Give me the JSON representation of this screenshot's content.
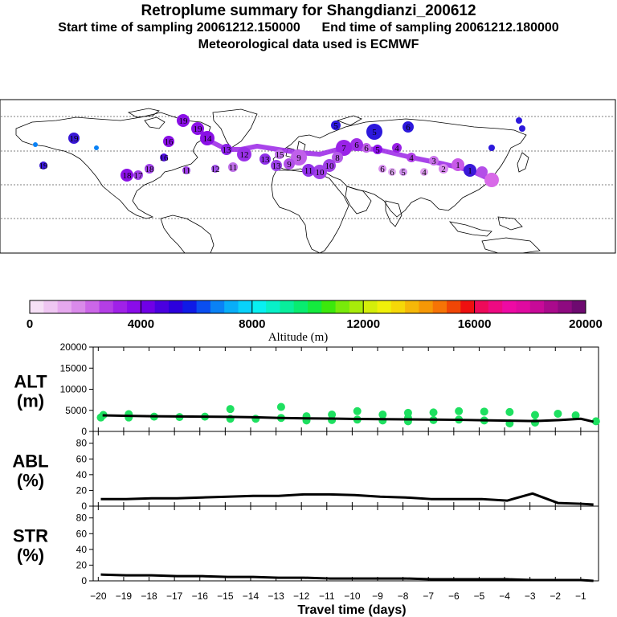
{
  "header": {
    "title": "Retroplume summary for Shangdianzi_200612",
    "sampling_line": "Start time of sampling 20061212.150000      End time of sampling 20061212.180000",
    "met_line": "Meteorological data used is ECMWF"
  },
  "colorbar": {
    "label": "Altitude (m)",
    "ticks": [
      "0",
      "4000",
      "8000",
      "12000",
      "16000",
      "20000"
    ],
    "range": [
      0,
      20000
    ],
    "colors": [
      "#f6e0f6",
      "#efc6f2",
      "#e6a8ee",
      "#da8aea",
      "#cc66e8",
      "#b43ee6",
      "#a021e8",
      "#8a0cea",
      "#7000e6",
      "#4a00e0",
      "#2c00dc",
      "#0f1ae6",
      "#0a4ef0",
      "#0a82f5",
      "#08aef8",
      "#08d2fa",
      "#08f0f2",
      "#08f0c8",
      "#08ee9c",
      "#08ec70",
      "#14ea3e",
      "#3ce80c",
      "#78ea0a",
      "#a8ec0a",
      "#d4ee0a",
      "#f0f00a",
      "#f6d808",
      "#f6b808",
      "#f69806",
      "#f67406",
      "#f04606",
      "#ee1010",
      "#ee0a5a",
      "#ee0a82",
      "#ee0aa4",
      "#e00aa0",
      "#c80a98",
      "#aa0a8c",
      "#8e0a80",
      "#6e0a70"
    ]
  },
  "map": {
    "labels": [
      "1",
      "2",
      "3",
      "4",
      "5",
      "6",
      "7",
      "8",
      "9",
      "10",
      "11",
      "12",
      "13",
      "14",
      "15",
      "16",
      "17",
      "18",
      "19",
      "20"
    ]
  },
  "chart_data": [
    {
      "type": "line",
      "name": "ALT",
      "ylabel": "ALT\n(m)",
      "yticks": [
        0,
        5000,
        10000,
        15000,
        20000
      ],
      "ylim": [
        0,
        20000
      ],
      "xlim": [
        -20.2,
        -0.3
      ],
      "x": [
        -19.83,
        -18.83,
        -17.83,
        -16.83,
        -15.83,
        -14.83,
        -13.83,
        -12.83,
        -11.83,
        -10.83,
        -9.83,
        -8.83,
        -7.83,
        -6.83,
        -5.83,
        -4.83,
        -3.83,
        -2.83,
        -1.83,
        -1.0,
        -0.5
      ],
      "line": [
        3800,
        3700,
        3600,
        3550,
        3500,
        3450,
        3350,
        3200,
        3100,
        3050,
        2950,
        2900,
        2850,
        2800,
        2750,
        2650,
        2550,
        2450,
        2700,
        3000,
        2300
      ],
      "scatter": [
        {
          "x": -19.9,
          "y": 3300
        },
        {
          "x": -19.8,
          "y": 3900
        },
        {
          "x": -18.8,
          "y": 3300
        },
        {
          "x": -18.8,
          "y": 4100
        },
        {
          "x": -17.8,
          "y": 3500
        },
        {
          "x": -16.8,
          "y": 3400
        },
        {
          "x": -15.8,
          "y": 3500
        },
        {
          "x": -14.8,
          "y": 3000
        },
        {
          "x": -14.8,
          "y": 5300
        },
        {
          "x": -13.8,
          "y": 3000
        },
        {
          "x": -12.8,
          "y": 3200
        },
        {
          "x": -12.8,
          "y": 5800
        },
        {
          "x": -11.8,
          "y": 2600
        },
        {
          "x": -11.8,
          "y": 3600
        },
        {
          "x": -10.8,
          "y": 2700
        },
        {
          "x": -10.8,
          "y": 4000
        },
        {
          "x": -9.8,
          "y": 2800
        },
        {
          "x": -9.8,
          "y": 4800
        },
        {
          "x": -8.8,
          "y": 2600
        },
        {
          "x": -8.8,
          "y": 4000
        },
        {
          "x": -7.8,
          "y": 2400
        },
        {
          "x": -7.8,
          "y": 3200
        },
        {
          "x": -7.8,
          "y": 4400
        },
        {
          "x": -6.8,
          "y": 2700
        },
        {
          "x": -6.8,
          "y": 4500
        },
        {
          "x": -5.8,
          "y": 2800
        },
        {
          "x": -5.8,
          "y": 4800
        },
        {
          "x": -4.8,
          "y": 2600
        },
        {
          "x": -4.8,
          "y": 4700
        },
        {
          "x": -3.8,
          "y": 1900
        },
        {
          "x": -3.8,
          "y": 4600
        },
        {
          "x": -2.8,
          "y": 2100
        },
        {
          "x": -2.8,
          "y": 3900
        },
        {
          "x": -1.9,
          "y": 4200
        },
        {
          "x": -1.2,
          "y": 3800
        },
        {
          "x": -0.4,
          "y": 2400
        }
      ],
      "scatter_color": "#1ee060"
    },
    {
      "type": "line",
      "name": "ABL",
      "ylabel": "ABL\n(%)",
      "yticks": [
        0,
        20,
        40,
        60,
        80
      ],
      "ylim": [
        0,
        95
      ],
      "x": [
        -19.9,
        -18.9,
        -17.9,
        -16.9,
        -15.9,
        -14.9,
        -13.9,
        -12.9,
        -11.9,
        -10.9,
        -9.9,
        -8.9,
        -7.9,
        -6.9,
        -5.9,
        -4.9,
        -3.9,
        -2.9,
        -1.9,
        -1.0,
        -0.5
      ],
      "values": [
        9,
        9,
        10,
        10,
        11,
        12,
        13,
        13,
        15,
        15,
        14,
        12,
        11,
        9,
        9,
        9,
        7,
        16,
        4,
        3,
        2
      ]
    },
    {
      "type": "line",
      "name": "STR",
      "ylabel": "STR\n(%)",
      "yticks": [
        0,
        20,
        40,
        60,
        80
      ],
      "ylim": [
        0,
        95
      ],
      "xlabel": "Travel time (days)",
      "xticks": [
        -20,
        -19,
        -18,
        -17,
        -16,
        -15,
        -14,
        -13,
        -12,
        -11,
        -10,
        -9,
        -8,
        -7,
        -6,
        -5,
        -4,
        -3,
        -2,
        -1
      ],
      "x": [
        -19.9,
        -18.9,
        -17.9,
        -16.9,
        -15.9,
        -14.9,
        -13.9,
        -12.9,
        -11.9,
        -10.9,
        -9.9,
        -8.9,
        -7.9,
        -6.9,
        -5.9,
        -4.9,
        -3.9,
        -2.9,
        -1.9,
        -1.0,
        -0.5
      ],
      "values": [
        8,
        7,
        7,
        6,
        6,
        5,
        5,
        4,
        4,
        3,
        3,
        3,
        3,
        2,
        2,
        2,
        2,
        1,
        1,
        1,
        0
      ]
    }
  ]
}
